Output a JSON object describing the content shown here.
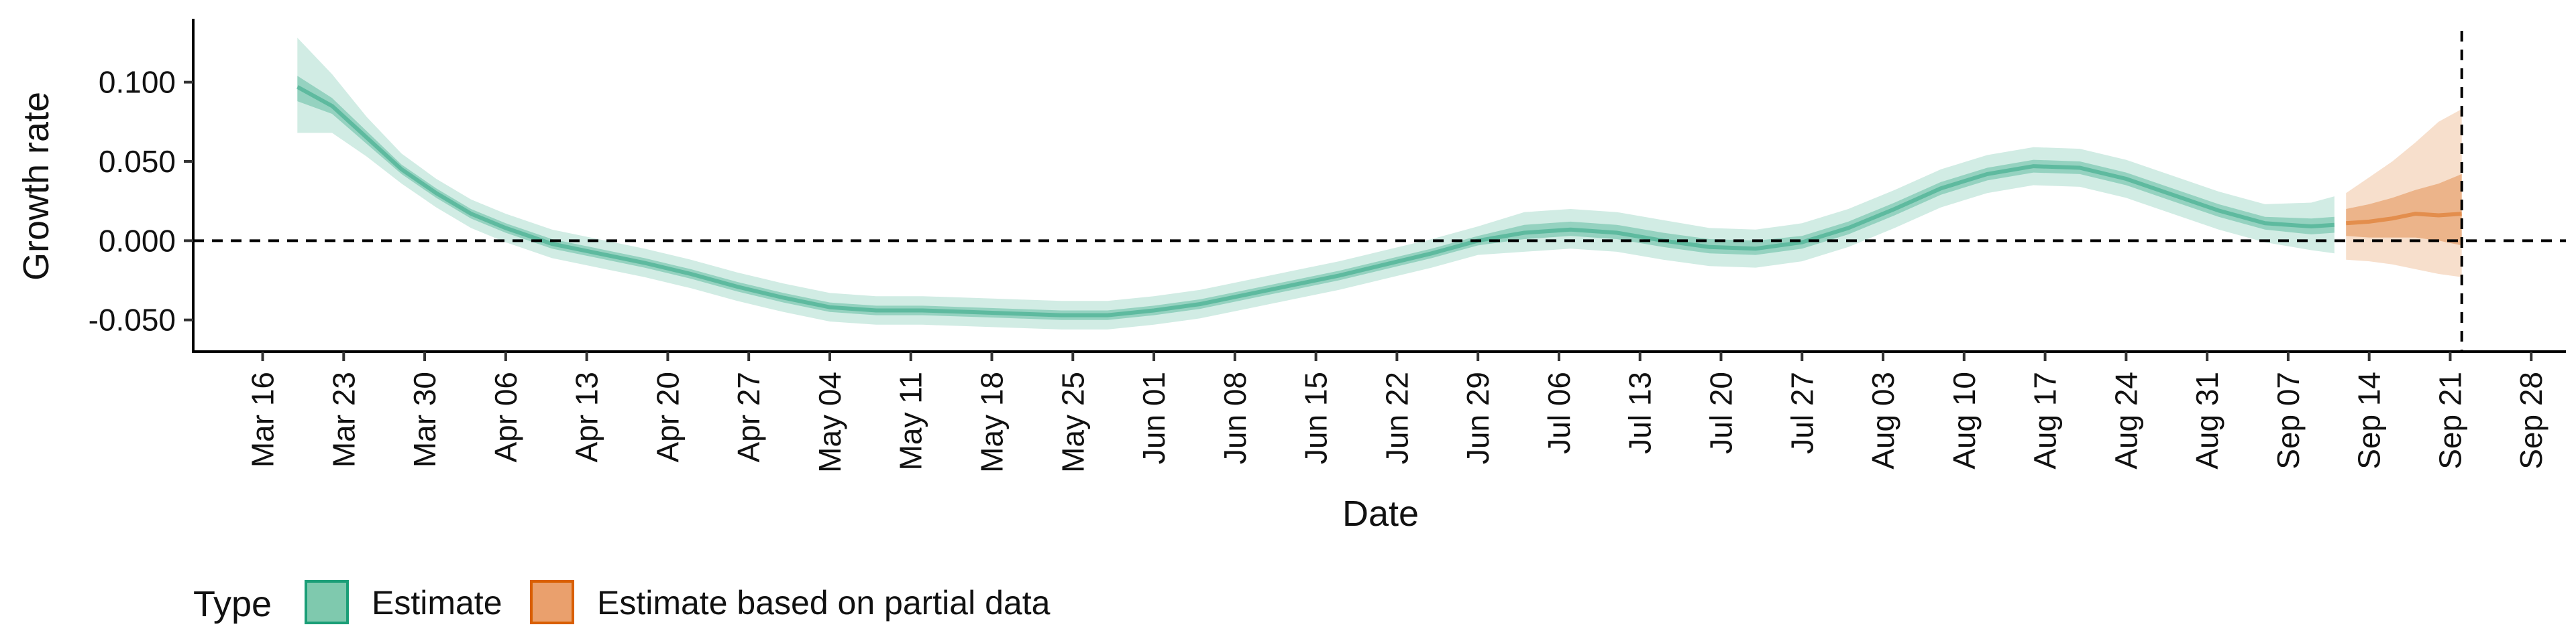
{
  "chart_data": {
    "type": "line",
    "title": "",
    "xlabel": "Date",
    "ylabel": "Growth rate",
    "x_axis": {
      "type": "date",
      "range": [
        "2020-03-10",
        "2020-10-01"
      ],
      "ticks": [
        {
          "date": "2020-03-16",
          "label": "Mar 16"
        },
        {
          "date": "2020-03-23",
          "label": "Mar 23"
        },
        {
          "date": "2020-03-30",
          "label": "Mar 30"
        },
        {
          "date": "2020-04-06",
          "label": "Apr 06"
        },
        {
          "date": "2020-04-13",
          "label": "Apr 13"
        },
        {
          "date": "2020-04-20",
          "label": "Apr 20"
        },
        {
          "date": "2020-04-27",
          "label": "Apr 27"
        },
        {
          "date": "2020-05-04",
          "label": "May 04"
        },
        {
          "date": "2020-05-11",
          "label": "May 11"
        },
        {
          "date": "2020-05-18",
          "label": "May 18"
        },
        {
          "date": "2020-05-25",
          "label": "May 25"
        },
        {
          "date": "2020-06-01",
          "label": "Jun 01"
        },
        {
          "date": "2020-06-08",
          "label": "Jun 08"
        },
        {
          "date": "2020-06-15",
          "label": "Jun 15"
        },
        {
          "date": "2020-06-22",
          "label": "Jun 22"
        },
        {
          "date": "2020-06-29",
          "label": "Jun 29"
        },
        {
          "date": "2020-07-06",
          "label": "Jul 06"
        },
        {
          "date": "2020-07-13",
          "label": "Jul 13"
        },
        {
          "date": "2020-07-20",
          "label": "Jul 20"
        },
        {
          "date": "2020-07-27",
          "label": "Jul 27"
        },
        {
          "date": "2020-08-03",
          "label": "Aug 03"
        },
        {
          "date": "2020-08-10",
          "label": "Aug 10"
        },
        {
          "date": "2020-08-17",
          "label": "Aug 17"
        },
        {
          "date": "2020-08-24",
          "label": "Aug 24"
        },
        {
          "date": "2020-08-31",
          "label": "Aug 31"
        },
        {
          "date": "2020-09-07",
          "label": "Sep 07"
        },
        {
          "date": "2020-09-14",
          "label": "Sep 14"
        },
        {
          "date": "2020-09-21",
          "label": "Sep 21"
        },
        {
          "date": "2020-09-28",
          "label": "Sep 28"
        }
      ]
    },
    "y_axis": {
      "range": [
        -0.07,
        0.14
      ],
      "ticks": [
        {
          "value": 0.1,
          "label": "0.100"
        },
        {
          "value": 0.05,
          "label": "0.050"
        },
        {
          "value": 0.0,
          "label": "0.000"
        },
        {
          "value": -0.05,
          "label": "-0.050"
        }
      ]
    },
    "grid": false,
    "reference_lines": [
      {
        "axis": "y",
        "value": 0,
        "style": "dashed"
      },
      {
        "axis": "x",
        "value": "2020-09-22",
        "style": "dashed"
      }
    ],
    "legend": {
      "position": "bottom-left",
      "title": "Type",
      "entries": [
        {
          "label": "Estimate",
          "fill": "#7fc9ae",
          "border": "#1b9e77"
        },
        {
          "label": "Estimate based on partial data",
          "fill": "#eaa06d",
          "border": "#d95f02"
        }
      ]
    },
    "series": [
      {
        "name": "Estimate",
        "color": "#1b9e77",
        "points": [
          {
            "x": "2020-03-19",
            "median": 0.097,
            "inner": [
              0.088,
              0.104
            ],
            "outer": [
              0.068,
              0.128
            ]
          },
          {
            "x": "2020-03-22",
            "median": 0.085,
            "inner": [
              0.08,
              0.09
            ],
            "outer": [
              0.068,
              0.105
            ]
          },
          {
            "x": "2020-03-25",
            "median": 0.065,
            "inner": [
              0.061,
              0.069
            ],
            "outer": [
              0.053,
              0.078
            ]
          },
          {
            "x": "2020-03-28",
            "median": 0.045,
            "inner": [
              0.042,
              0.048
            ],
            "outer": [
              0.036,
              0.055
            ]
          },
          {
            "x": "2020-03-31",
            "median": 0.03,
            "inner": [
              0.027,
              0.033
            ],
            "outer": [
              0.021,
              0.039
            ]
          },
          {
            "x": "2020-04-03",
            "median": 0.017,
            "inner": [
              0.014,
              0.02
            ],
            "outer": [
              0.008,
              0.026
            ]
          },
          {
            "x": "2020-04-06",
            "median": 0.008,
            "inner": [
              0.005,
              0.011
            ],
            "outer": [
              -0.001,
              0.017
            ]
          },
          {
            "x": "2020-04-10",
            "median": -0.002,
            "inner": [
              -0.005,
              0.001
            ],
            "outer": [
              -0.011,
              0.007
            ]
          },
          {
            "x": "2020-04-14",
            "median": -0.008,
            "inner": [
              -0.011,
              -0.005
            ],
            "outer": [
              -0.017,
              0.001
            ]
          },
          {
            "x": "2020-04-18",
            "median": -0.014,
            "inner": [
              -0.017,
              -0.011
            ],
            "outer": [
              -0.023,
              -0.005
            ]
          },
          {
            "x": "2020-04-22",
            "median": -0.021,
            "inner": [
              -0.024,
              -0.018
            ],
            "outer": [
              -0.03,
              -0.012
            ]
          },
          {
            "x": "2020-04-26",
            "median": -0.029,
            "inner": [
              -0.032,
              -0.026
            ],
            "outer": [
              -0.038,
              -0.02
            ]
          },
          {
            "x": "2020-04-30",
            "median": -0.036,
            "inner": [
              -0.039,
              -0.033
            ],
            "outer": [
              -0.045,
              -0.027
            ]
          },
          {
            "x": "2020-05-04",
            "median": -0.042,
            "inner": [
              -0.045,
              -0.039
            ],
            "outer": [
              -0.051,
              -0.033
            ]
          },
          {
            "x": "2020-05-08",
            "median": -0.044,
            "inner": [
              -0.047,
              -0.041
            ],
            "outer": [
              -0.053,
              -0.035
            ]
          },
          {
            "x": "2020-05-12",
            "median": -0.044,
            "inner": [
              -0.047,
              -0.041
            ],
            "outer": [
              -0.053,
              -0.035
            ]
          },
          {
            "x": "2020-05-16",
            "median": -0.045,
            "inner": [
              -0.048,
              -0.042
            ],
            "outer": [
              -0.054,
              -0.036
            ]
          },
          {
            "x": "2020-05-20",
            "median": -0.046,
            "inner": [
              -0.049,
              -0.043
            ],
            "outer": [
              -0.055,
              -0.037
            ]
          },
          {
            "x": "2020-05-24",
            "median": -0.047,
            "inner": [
              -0.05,
              -0.044
            ],
            "outer": [
              -0.056,
              -0.038
            ]
          },
          {
            "x": "2020-05-28",
            "median": -0.047,
            "inner": [
              -0.05,
              -0.044
            ],
            "outer": [
              -0.056,
              -0.038
            ]
          },
          {
            "x": "2020-06-01",
            "median": -0.044,
            "inner": [
              -0.047,
              -0.041
            ],
            "outer": [
              -0.053,
              -0.035
            ]
          },
          {
            "x": "2020-06-05",
            "median": -0.04,
            "inner": [
              -0.043,
              -0.037
            ],
            "outer": [
              -0.049,
              -0.031
            ]
          },
          {
            "x": "2020-06-09",
            "median": -0.034,
            "inner": [
              -0.037,
              -0.031
            ],
            "outer": [
              -0.043,
              -0.025
            ]
          },
          {
            "x": "2020-06-13",
            "median": -0.028,
            "inner": [
              -0.031,
              -0.025
            ],
            "outer": [
              -0.037,
              -0.019
            ]
          },
          {
            "x": "2020-06-17",
            "median": -0.022,
            "inner": [
              -0.025,
              -0.019
            ],
            "outer": [
              -0.031,
              -0.013
            ]
          },
          {
            "x": "2020-06-21",
            "median": -0.015,
            "inner": [
              -0.018,
              -0.012
            ],
            "outer": [
              -0.024,
              -0.006
            ]
          },
          {
            "x": "2020-06-25",
            "median": -0.008,
            "inner": [
              -0.011,
              -0.005
            ],
            "outer": [
              -0.017,
              0.001
            ]
          },
          {
            "x": "2020-06-29",
            "median": 0.0,
            "inner": [
              -0.003,
              0.003
            ],
            "outer": [
              -0.009,
              0.009
            ]
          },
          {
            "x": "2020-07-03",
            "median": 0.005,
            "inner": [
              0.001,
              0.01
            ],
            "outer": [
              -0.007,
              0.018
            ]
          },
          {
            "x": "2020-07-07",
            "median": 0.007,
            "inner": [
              0.003,
              0.012
            ],
            "outer": [
              -0.005,
              0.02
            ]
          },
          {
            "x": "2020-07-11",
            "median": 0.005,
            "inner": [
              0.001,
              0.01
            ],
            "outer": [
              -0.007,
              0.018
            ]
          },
          {
            "x": "2020-07-15",
            "median": 0.0,
            "inner": [
              -0.004,
              0.005
            ],
            "outer": [
              -0.012,
              0.013
            ]
          },
          {
            "x": "2020-07-19",
            "median": -0.004,
            "inner": [
              -0.008,
              0.001
            ],
            "outer": [
              -0.016,
              0.008
            ]
          },
          {
            "x": "2020-07-23",
            "median": -0.005,
            "inner": [
              -0.009,
              0.0
            ],
            "outer": [
              -0.017,
              0.007
            ]
          },
          {
            "x": "2020-07-27",
            "median": -0.001,
            "inner": [
              -0.005,
              0.003
            ],
            "outer": [
              -0.013,
              0.011
            ]
          },
          {
            "x": "2020-07-31",
            "median": 0.008,
            "inner": [
              0.004,
              0.012
            ],
            "outer": [
              -0.004,
              0.02
            ]
          },
          {
            "x": "2020-08-04",
            "median": 0.02,
            "inner": [
              0.016,
              0.024
            ],
            "outer": [
              0.008,
              0.032
            ]
          },
          {
            "x": "2020-08-08",
            "median": 0.033,
            "inner": [
              0.029,
              0.037
            ],
            "outer": [
              0.021,
              0.045
            ]
          },
          {
            "x": "2020-08-12",
            "median": 0.042,
            "inner": [
              0.038,
              0.046
            ],
            "outer": [
              0.03,
              0.054
            ]
          },
          {
            "x": "2020-08-16",
            "median": 0.047,
            "inner": [
              0.043,
              0.051
            ],
            "outer": [
              0.035,
              0.059
            ]
          },
          {
            "x": "2020-08-20",
            "median": 0.046,
            "inner": [
              0.042,
              0.05
            ],
            "outer": [
              0.034,
              0.058
            ]
          },
          {
            "x": "2020-08-24",
            "median": 0.039,
            "inner": [
              0.035,
              0.043
            ],
            "outer": [
              0.027,
              0.051
            ]
          },
          {
            "x": "2020-08-28",
            "median": 0.029,
            "inner": [
              0.025,
              0.033
            ],
            "outer": [
              0.017,
              0.041
            ]
          },
          {
            "x": "2020-09-01",
            "median": 0.019,
            "inner": [
              0.015,
              0.023
            ],
            "outer": [
              0.007,
              0.031
            ]
          },
          {
            "x": "2020-09-05",
            "median": 0.011,
            "inner": [
              0.007,
              0.015
            ],
            "outer": [
              -0.001,
              0.023
            ]
          },
          {
            "x": "2020-09-09",
            "median": 0.009,
            "inner": [
              0.004,
              0.014
            ],
            "outer": [
              -0.006,
              0.024
            ]
          },
          {
            "x": "2020-09-11",
            "median": 0.01,
            "inner": [
              0.005,
              0.015
            ],
            "outer": [
              -0.008,
              0.028
            ]
          }
        ]
      },
      {
        "name": "Estimate based on partial data",
        "color": "#d95f02",
        "points": [
          {
            "x": "2020-09-12",
            "median": 0.011,
            "inner": [
              0.003,
              0.02
            ],
            "outer": [
              -0.012,
              0.03
            ]
          },
          {
            "x": "2020-09-14",
            "median": 0.012,
            "inner": [
              0.002,
              0.023
            ],
            "outer": [
              -0.013,
              0.04
            ]
          },
          {
            "x": "2020-09-16",
            "median": 0.014,
            "inner": [
              0.002,
              0.027
            ],
            "outer": [
              -0.015,
              0.05
            ]
          },
          {
            "x": "2020-09-18",
            "median": 0.017,
            "inner": [
              0.002,
              0.032
            ],
            "outer": [
              -0.018,
              0.062
            ]
          },
          {
            "x": "2020-09-20",
            "median": 0.016,
            "inner": [
              0.0,
              0.036
            ],
            "outer": [
              -0.021,
              0.075
            ]
          },
          {
            "x": "2020-09-22",
            "median": 0.017,
            "inner": [
              -0.003,
              0.042
            ],
            "outer": [
              -0.023,
              0.083
            ]
          }
        ]
      }
    ]
  }
}
